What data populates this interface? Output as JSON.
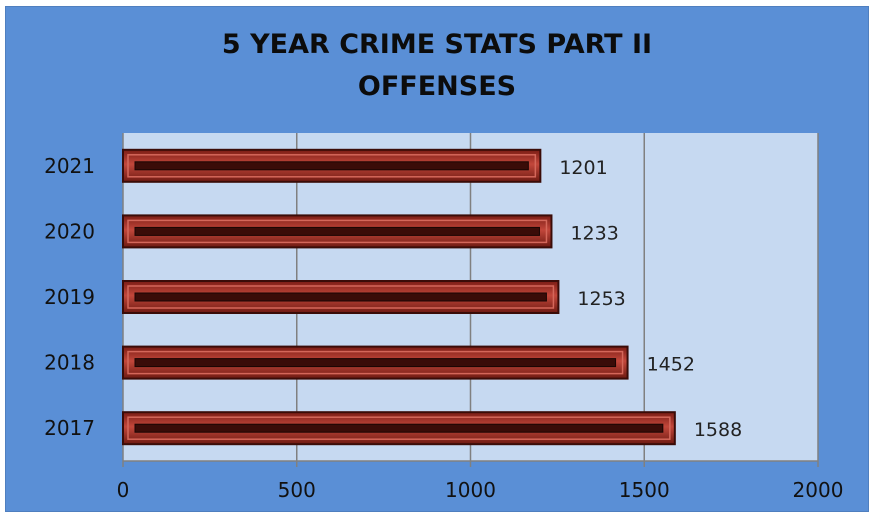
{
  "chart_data": {
    "type": "bar",
    "orientation": "horizontal",
    "title_lines": [
      "5 YEAR CRIME STATS PART II",
      "OFFENSES"
    ],
    "categories": [
      "2021",
      "2020",
      "2019",
      "2018",
      "2017"
    ],
    "values": [
      1201,
      1233,
      1253,
      1452,
      1588
    ],
    "xlim": [
      0,
      2000
    ],
    "xticks": [
      "0",
      "500",
      "1000",
      "1500",
      "2000"
    ],
    "grid": true,
    "legend": "none",
    "colors": {
      "chart_background": "#5a8fd6",
      "plot_background": "#c6d9f1",
      "bar_fill": "#b23a30",
      "bar_dark": "#3a0c08",
      "bar_light": "#d4675a",
      "gridline": "#808080"
    }
  }
}
